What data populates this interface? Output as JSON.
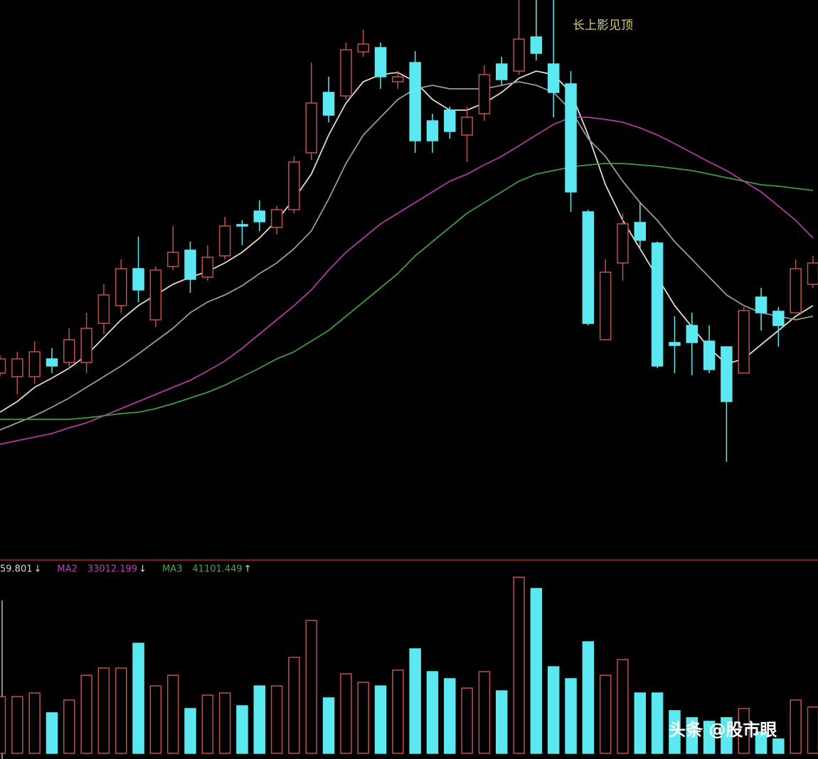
{
  "chart_data": {
    "type": "candlestick",
    "annotation": "长上影见顶",
    "up_color": "#c0504d",
    "down_color": "#5ce8f0",
    "ylim": [
      0,
      780
    ],
    "open": [
      255,
      250,
      250,
      275,
      270,
      270,
      325,
      350,
      402,
      330,
      405,
      428,
      390,
      420,
      464,
      483,
      460,
      485,
      565,
      650,
      645,
      707,
      713,
      665,
      692,
      610,
      625,
      590,
      620,
      690,
      680,
      728,
      690,
      662,
      482,
      302,
      410,
      467,
      438,
      298,
      322,
      300,
      292,
      255,
      362,
      342,
      340,
      380
    ],
    "close": [
      275,
      275,
      285,
      265,
      302,
      318,
      365,
      402,
      372,
      400,
      425,
      387,
      418,
      462,
      462,
      468,
      485,
      552,
      635,
      618,
      710,
      718,
      672,
      672,
      582,
      582,
      595,
      615,
      675,
      668,
      725,
      705,
      650,
      510,
      325,
      397,
      465,
      442,
      265,
      294,
      298,
      260,
      215,
      343,
      340,
      322,
      402,
      410
    ],
    "high": [
      280,
      285,
      300,
      290,
      318,
      340,
      380,
      415,
      447,
      405,
      462,
      440,
      435,
      475,
      470,
      498,
      490,
      560,
      692,
      672,
      720,
      738,
      720,
      680,
      708,
      620,
      630,
      630,
      688,
      700,
      780,
      780,
      780,
      680,
      485,
      415,
      480,
      495,
      440,
      335,
      340,
      322,
      292,
      348,
      375,
      348,
      415,
      420
    ],
    "low": [
      250,
      225,
      240,
      255,
      260,
      255,
      310,
      340,
      355,
      320,
      400,
      368,
      385,
      415,
      435,
      455,
      450,
      480,
      555,
      608,
      640,
      700,
      655,
      655,
      565,
      565,
      585,
      552,
      610,
      660,
      675,
      695,
      615,
      482,
      322,
      302,
      385,
      430,
      262,
      255,
      252,
      255,
      130,
      255,
      315,
      292,
      340,
      375
    ],
    "lines": [
      {
        "color": "#e8d8c8",
        "values": [
          200,
          215,
          235,
          248,
          262,
          280,
          305,
          330,
          350,
          365,
          380,
          390,
          398,
          410,
          425,
          445,
          470,
          500,
          535,
          590,
          635,
          665,
          675,
          678,
          665,
          640,
          625,
          625,
          635,
          650,
          670,
          680,
          675,
          650,
          590,
          520,
          470,
          430,
          390,
          350,
          320,
          290,
          268,
          275,
          295,
          315,
          335,
          350
        ]
      },
      {
        "color": "#9a9a9a",
        "values": [
          175,
          185,
          195,
          207,
          220,
          235,
          250,
          265,
          282,
          300,
          318,
          340,
          355,
          365,
          378,
          395,
          410,
          430,
          455,
          500,
          550,
          590,
          615,
          640,
          655,
          660,
          655,
          655,
          655,
          660,
          665,
          660,
          650,
          625,
          585,
          560,
          525,
          495,
          470,
          440,
          415,
          390,
          365,
          350,
          340,
          335,
          330,
          335
        ]
      },
      {
        "color": "#b03aa0",
        "values": [
          155,
          160,
          165,
          170,
          178,
          185,
          195,
          205,
          215,
          225,
          235,
          245,
          258,
          272,
          290,
          310,
          330,
          350,
          372,
          400,
          425,
          445,
          465,
          480,
          495,
          510,
          525,
          535,
          548,
          560,
          575,
          590,
          605,
          615,
          615,
          612,
          608,
          600,
          590,
          578,
          565,
          552,
          540,
          525,
          510,
          490,
          470,
          445
        ]
      },
      {
        "color": "#3f9a3f",
        "values": [
          190,
          190,
          190,
          190,
          190,
          192,
          195,
          198,
          200,
          205,
          212,
          220,
          228,
          238,
          250,
          262,
          275,
          285,
          300,
          315,
          335,
          355,
          375,
          395,
          420,
          440,
          460,
          480,
          495,
          510,
          525,
          535,
          540,
          545,
          548,
          550,
          550,
          548,
          546,
          543,
          540,
          535,
          530,
          525,
          520,
          518,
          515,
          512
        ]
      }
    ],
    "volume": {
      "ylim": [
        0,
        90000
      ],
      "values": [
        26600,
        26600,
        28300,
        19000,
        25000,
        36600,
        40000,
        40000,
        51600,
        31600,
        36600,
        21000,
        27300,
        28300,
        22300,
        31600,
        31600,
        45000,
        62300,
        26000,
        37300,
        33300,
        31600,
        39000,
        49000,
        38300,
        35000,
        30600,
        38300,
        29300,
        82600,
        77300,
        40600,
        35000,
        52300,
        36600,
        44000,
        28300,
        28300,
        20000,
        16700,
        15000,
        16700,
        21000,
        10000,
        6700,
        25000,
        21700
      ],
      "legend": [
        {
          "value_text": "59.801",
          "arrow": "↓",
          "color": "#d8d8d8"
        },
        {
          "label": "MA2",
          "value_text": "33012.199",
          "arrow": "↓",
          "color": "#c040c0"
        },
        {
          "label": "MA3",
          "value_text": "41101.449",
          "arrow": "↑",
          "color": "#3fb03f"
        }
      ]
    },
    "watermark": "头条 @股市眼"
  }
}
